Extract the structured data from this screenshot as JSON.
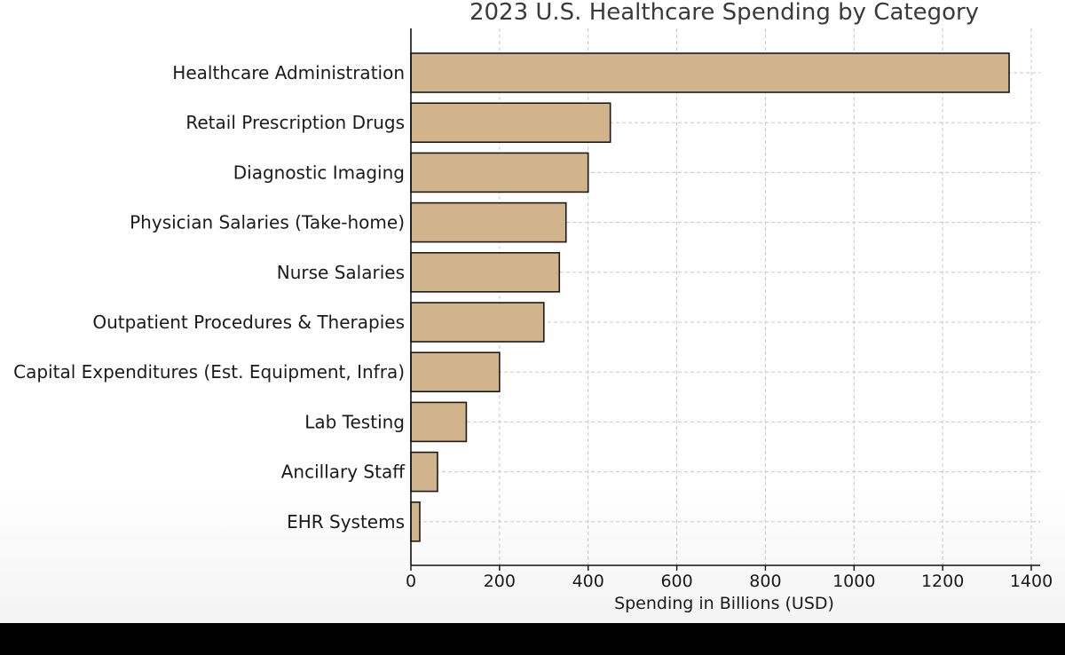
{
  "chart_data": {
    "type": "bar",
    "orientation": "horizontal",
    "title": "2023 U.S. Healthcare Spending by Category",
    "xlabel": "Spending in Billions (USD)",
    "ylabel": "",
    "xlim": [
      0,
      1400
    ],
    "xticks": [
      0,
      200,
      400,
      600,
      800,
      1000,
      1200,
      1400
    ],
    "grid": true,
    "bar_color": "#d2b48c",
    "categories": [
      "Healthcare Administration",
      "Retail Prescription Drugs",
      "Diagnostic Imaging",
      "Physician Salaries (Take-home)",
      "Nurse Salaries",
      "Outpatient Procedures & Therapies",
      "Capital Expenditures (Est. Equipment, Infra)",
      "Lab Testing",
      "Ancillary Staff",
      "EHR Systems"
    ],
    "values": [
      1350,
      450,
      400,
      350,
      335,
      300,
      200,
      125,
      60,
      20
    ]
  }
}
